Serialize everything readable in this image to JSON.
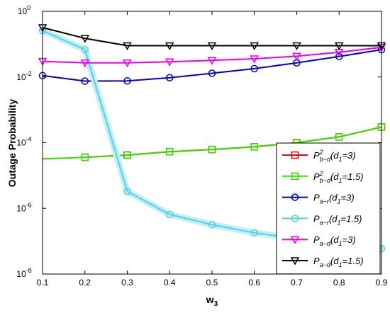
{
  "chart_data": {
    "type": "line",
    "xlabel": "w",
    "xlabel_sub": "3",
    "ylabel": "Outage Probability",
    "x_ticks": [
      "0.1",
      "0.2",
      "0.3",
      "0.4",
      "0.5",
      "0.6",
      "0.7",
      "0.8",
      "0.9"
    ],
    "y_ticks": [
      {
        "base": "10",
        "exp": "0"
      },
      {
        "base": "10",
        "exp": "-2"
      },
      {
        "base": "10",
        "exp": "-4"
      },
      {
        "base": "10",
        "exp": "-6"
      },
      {
        "base": "10",
        "exp": "-8"
      }
    ],
    "x_range": [
      0.1,
      0.9
    ],
    "y_range": [
      1e-08,
      1
    ],
    "y_scale": "log",
    "grid": false,
    "legend_position": "lower-right",
    "series": [
      {
        "name": "P_{b-d}^2(d_1=3)",
        "legend": {
          "base": "P",
          "sub": "b−d",
          "sup": "2",
          "arg": "(d",
          "argsub": "1",
          "argtail": "=3)"
        },
        "color": "#ff0000",
        "marker": "square",
        "x": [
          0.2,
          0.3,
          0.4,
          0.5,
          0.6,
          0.7,
          0.8,
          0.9
        ],
        "y": [
          3.6e-05,
          4.2e-05,
          5.3e-05,
          6.2e-05,
          7.5e-05,
          0.0001,
          0.00015,
          0.0003
        ]
      },
      {
        "name": "P_{b-d}^2(d_1=1.5)",
        "legend": {
          "base": "P",
          "sub": "b−d",
          "sup": "2",
          "arg": "(d",
          "argsub": "1",
          "argtail": "=1.5)"
        },
        "color": "#33dd00",
        "marker": "square",
        "x": [
          0.1,
          0.2,
          0.3,
          0.4,
          0.5,
          0.6,
          0.7,
          0.8,
          0.9
        ],
        "y": [
          3.2e-05,
          3.6e-05,
          4.2e-05,
          5.3e-05,
          6.2e-05,
          7.5e-05,
          0.0001,
          0.00015,
          0.0003
        ]
      },
      {
        "name": "P_{a-r}(d_1=3)",
        "legend": {
          "base": "P",
          "sub": "a−r",
          "sup": "",
          "arg": "(d",
          "argsub": "1",
          "argtail": "=3)"
        },
        "color": "#0000cc",
        "marker": "circle",
        "x": [
          0.1,
          0.2,
          0.3,
          0.4,
          0.5,
          0.6,
          0.7,
          0.8,
          0.9
        ],
        "y": [
          0.011,
          0.0075,
          0.0076,
          0.0095,
          0.013,
          0.018,
          0.027,
          0.042,
          0.068
        ]
      },
      {
        "name": "P_{a-r}(d_1=1.5)",
        "legend": {
          "base": "P",
          "sub": "a−r",
          "sup": "",
          "arg": "(d",
          "argsub": "1",
          "argtail": "=1.5)"
        },
        "color": "#55d0e8",
        "marker": "circle",
        "x": [
          0.1,
          0.2,
          0.3,
          0.4,
          0.5,
          0.6,
          0.7,
          0.8,
          0.9
        ],
        "y": [
          0.26,
          0.068,
          3.3e-06,
          6.5e-07,
          3.2e-07,
          1.8e-07,
          1.2e-07,
          8.5e-08,
          6e-08
        ]
      },
      {
        "name": "P_{a-d}(d_1=3)",
        "legend": {
          "base": "P",
          "sub": "a−d",
          "sup": "",
          "arg": "(d",
          "argsub": "1",
          "argtail": "=3)"
        },
        "color": "#ee00ee",
        "marker": "triangle-down",
        "x": [
          0.1,
          0.2,
          0.3,
          0.4,
          0.5,
          0.6,
          0.7,
          0.8,
          0.9
        ],
        "y": [
          0.03,
          0.027,
          0.027,
          0.029,
          0.032,
          0.036,
          0.043,
          0.057,
          0.08
        ]
      },
      {
        "name": "P_{a-d}(d_1=1.5)",
        "legend": {
          "base": "P",
          "sub": "a−d",
          "sup": "",
          "arg": "(d",
          "argsub": "1",
          "argtail": "=1.5)"
        },
        "color": "#000000",
        "marker": "triangle-down",
        "x": [
          0.1,
          0.2,
          0.3,
          0.4,
          0.5,
          0.6,
          0.7,
          0.8,
          0.9
        ],
        "y": [
          0.32,
          0.15,
          0.09,
          0.09,
          0.09,
          0.09,
          0.09,
          0.09,
          0.09
        ]
      }
    ]
  }
}
